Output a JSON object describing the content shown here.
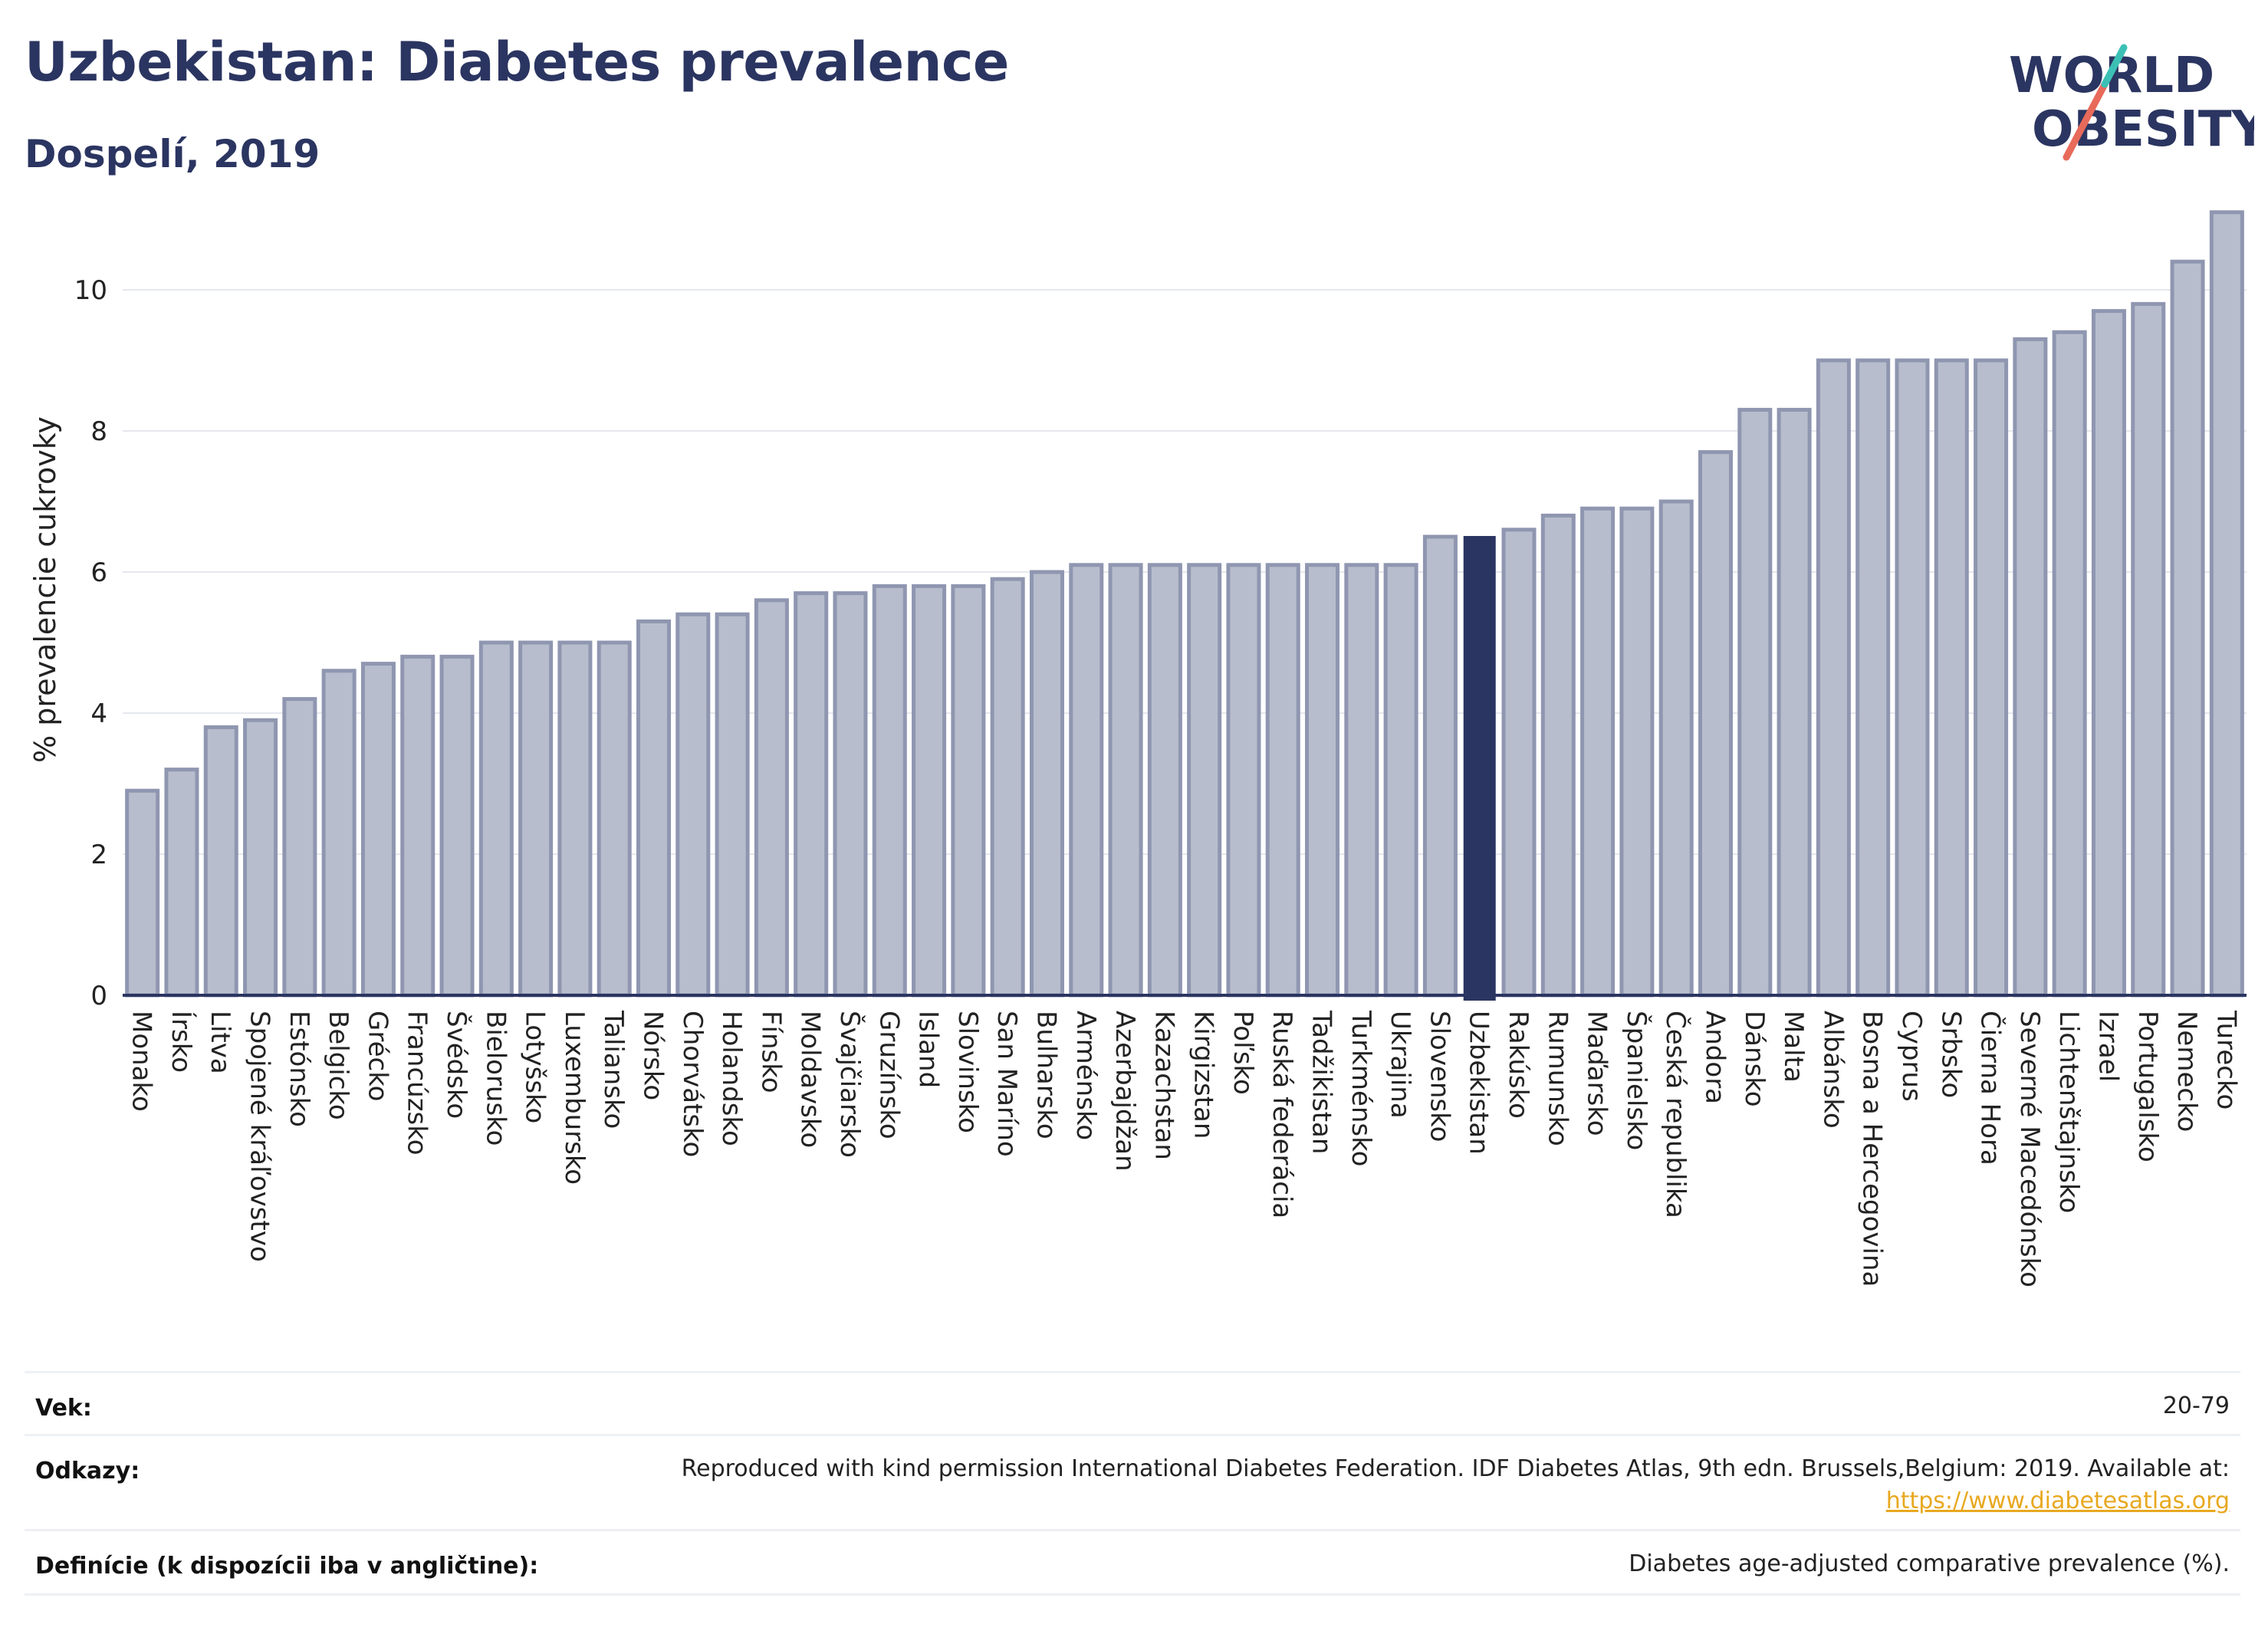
{
  "header": {
    "title": "Uzbekistan: Diabetes prevalence",
    "subtitle": "Dospelí, 2019"
  },
  "logo": {
    "line1": "WORLD",
    "line2": "OBESITY"
  },
  "colors": {
    "bar": "#b8bdcd",
    "bar_border": "#8f96b0",
    "highlight": "#2b3561",
    "title": "#2b3561",
    "link": "#e8a820"
  },
  "chart_data": {
    "type": "bar",
    "title": "",
    "xlabel": "",
    "ylabel": "% prevalencie cukrovky",
    "ylim": [
      0,
      11.5
    ],
    "yticks": [
      0,
      2,
      4,
      6,
      8,
      10
    ],
    "grid": true,
    "highlight": "Uzbekistan",
    "categories": [
      "Monako",
      "Írsko",
      "Litva",
      "Spojené kráľovstvo",
      "Estónsko",
      "Belgicko",
      "Grécko",
      "Francúzsko",
      "Švédsko",
      "Bielorusko",
      "Lotyšsko",
      "Luxembursko",
      "Taliansko",
      "Nórsko",
      "Chorvátsko",
      "Holandsko",
      "Fínsko",
      "Moldavsko",
      "Švajčiarsko",
      "Gruzínsko",
      "Island",
      "Slovinsko",
      "San Maríno",
      "Bulharsko",
      "Arménsko",
      "Azerbajdžan",
      "Kazachstan",
      "Kirgizstan",
      "Poľsko",
      "Ruská federácia",
      "Tadžikistan",
      "Turkménsko",
      "Ukrajina",
      "Slovensko",
      "Uzbekistan",
      "Rakúsko",
      "Rumunsko",
      "Maďarsko",
      "Španielsko",
      "Česká republika",
      "Andora",
      "Dánsko",
      "Malta",
      "Albánsko",
      "Bosna a Hercegovina",
      "Cyprus",
      "Srbsko",
      "Čierna Hora",
      "Severné Macedónsko",
      "Lichtenštajnsko",
      "Izrael",
      "Portugalsko",
      "Nemecko",
      "Turecko"
    ],
    "values": [
      2.9,
      3.2,
      3.8,
      3.9,
      4.2,
      4.6,
      4.7,
      4.8,
      4.8,
      5.0,
      5.0,
      5.0,
      5.0,
      5.3,
      5.4,
      5.4,
      5.6,
      5.7,
      5.7,
      5.8,
      5.8,
      5.8,
      5.9,
      6.0,
      6.1,
      6.1,
      6.1,
      6.1,
      6.1,
      6.1,
      6.1,
      6.1,
      6.1,
      6.5,
      6.5,
      6.6,
      6.8,
      6.9,
      6.9,
      7.0,
      7.7,
      8.3,
      8.3,
      9.0,
      9.0,
      9.0,
      9.0,
      9.0,
      9.3,
      9.4,
      9.7,
      9.8,
      10.4,
      11.1
    ]
  },
  "info": {
    "age_label": "Vek:",
    "age_value": "20-79",
    "refs_label": "Odkazy:",
    "refs_value": "Reproduced with kind permission International Diabetes Federation. IDF Diabetes Atlas, 9th edn. Brussels,Belgium: 2019. Available at:",
    "refs_link": "https://www.diabetesatlas.org",
    "def_label": "Definície (k dispozícii iba v angličtine):",
    "def_value": "Diabetes age-adjusted comparative prevalence (%)."
  }
}
